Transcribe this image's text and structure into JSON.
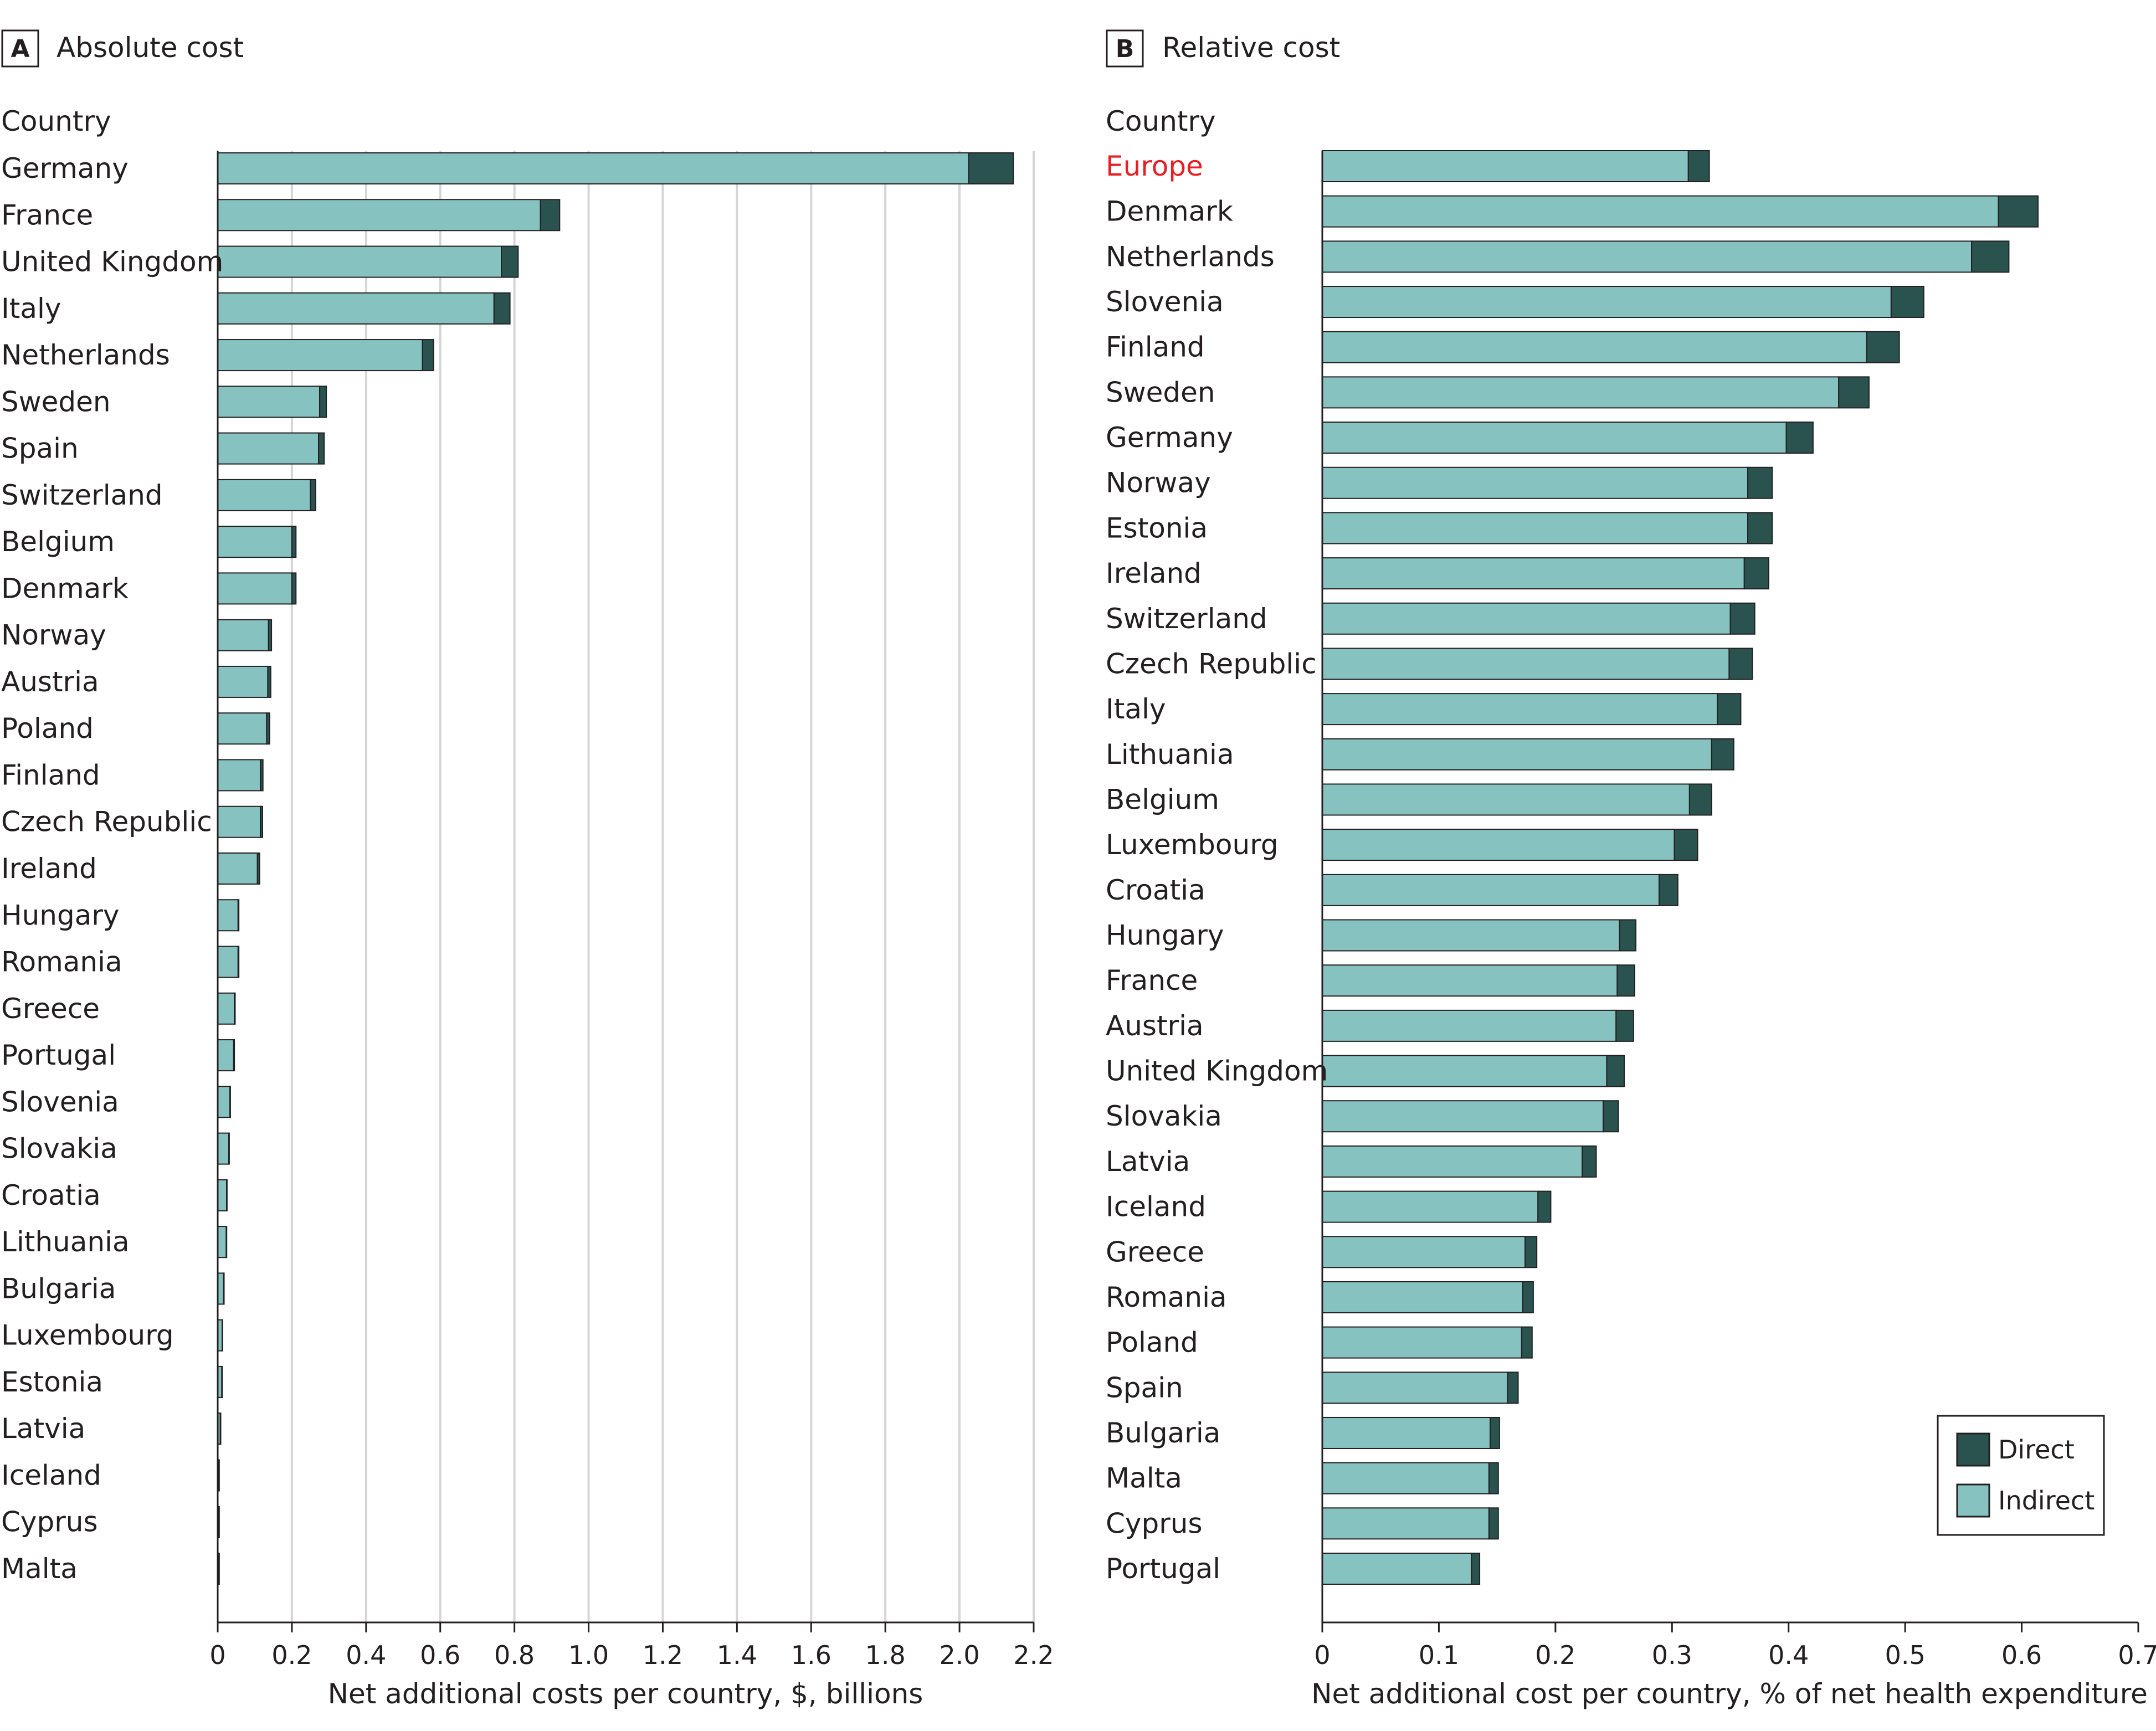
{
  "colors": {
    "direct": "#2a5350",
    "indirect": "#86c2c0",
    "grid": "#d5d5d5",
    "axis": "#231f20",
    "highlight": "#e41f25"
  },
  "legend": {
    "direct_label": "Direct",
    "indirect_label": "Indirect"
  },
  "chart_data": [
    {
      "type": "bar",
      "orientation": "horizontal",
      "stacked": true,
      "panel_letter": "A",
      "title": "Absolute cost",
      "category_header": "Country",
      "xlabel": "Net additional costs per country, $, billions",
      "xlim": [
        0,
        2.2
      ],
      "xticks": [
        0,
        0.2,
        0.4,
        0.6,
        0.8,
        1.0,
        1.2,
        1.4,
        1.6,
        1.8,
        2.0,
        2.2
      ],
      "xtick_labels": [
        "0",
        "0.2",
        "0.4",
        "0.6",
        "0.8",
        "1.0",
        "1.2",
        "1.4",
        "1.6",
        "1.8",
        "2.0",
        "2.2"
      ],
      "grid": true,
      "categories": [
        "Germany",
        "France",
        "United Kingdom",
        "Italy",
        "Netherlands",
        "Sweden",
        "Spain",
        "Switzerland",
        "Belgium",
        "Denmark",
        "Norway",
        "Austria",
        "Poland",
        "Finland",
        "Czech Republic",
        "Ireland",
        "Hungary",
        "Romania",
        "Greece",
        "Portugal",
        "Slovenia",
        "Slovakia",
        "Croatia",
        "Lithuania",
        "Bulgaria",
        "Luxembourg",
        "Estonia",
        "Latvia",
        "Iceland",
        "Cyprus",
        "Malta"
      ],
      "series": [
        {
          "name": "Indirect",
          "values": [
            2.025,
            0.87,
            0.765,
            0.745,
            0.552,
            0.275,
            0.272,
            0.25,
            0.2,
            0.2,
            0.137,
            0.135,
            0.132,
            0.115,
            0.115,
            0.107,
            0.055,
            0.055,
            0.045,
            0.043,
            0.033,
            0.03,
            0.024,
            0.023,
            0.016,
            0.012,
            0.011,
            0.007,
            0.003,
            0.003,
            0.003
          ]
        },
        {
          "name": "Direct",
          "values": [
            0.12,
            0.052,
            0.045,
            0.043,
            0.03,
            0.018,
            0.015,
            0.014,
            0.011,
            0.011,
            0.008,
            0.008,
            0.008,
            0.007,
            0.006,
            0.006,
            0.002,
            0.002,
            0.002,
            0.002,
            0.001,
            0.001,
            0.001,
            0.001,
            0.001,
            0.001,
            0.001,
            0.001,
            0.001,
            0.001,
            0.001
          ]
        }
      ]
    },
    {
      "type": "bar",
      "orientation": "horizontal",
      "stacked": true,
      "panel_letter": "B",
      "title": "Relative cost",
      "category_header": "Country",
      "xlabel": "Net additional cost per country, % of net health expenditure",
      "xlim": [
        0,
        0.7
      ],
      "xticks": [
        0,
        0.1,
        0.2,
        0.3,
        0.4,
        0.5,
        0.6,
        0.7
      ],
      "xtick_labels": [
        "0",
        "0.1",
        "0.2",
        "0.3",
        "0.4",
        "0.5",
        "0.6",
        "0.7"
      ],
      "grid": false,
      "highlighted_category": "Europe",
      "legend_position": "bottom-right",
      "categories": [
        "Europe",
        "Denmark",
        "Netherlands",
        "Slovenia",
        "Finland",
        "Sweden",
        "Germany",
        "Norway",
        "Estonia",
        "Ireland",
        "Switzerland",
        "Czech Republic",
        "Italy",
        "Lithuania",
        "Belgium",
        "Luxembourg",
        "Croatia",
        "Hungary",
        "France",
        "Austria",
        "United Kingdom",
        "Slovakia",
        "Latvia",
        "Iceland",
        "Greece",
        "Romania",
        "Poland",
        "Spain",
        "Bulgaria",
        "Malta",
        "Cyprus",
        "Portugal"
      ],
      "series": [
        {
          "name": "Indirect",
          "values": [
            0.314,
            0.58,
            0.557,
            0.488,
            0.467,
            0.443,
            0.398,
            0.365,
            0.365,
            0.362,
            0.35,
            0.349,
            0.339,
            0.334,
            0.315,
            0.302,
            0.289,
            0.255,
            0.253,
            0.252,
            0.244,
            0.241,
            0.223,
            0.185,
            0.174,
            0.172,
            0.171,
            0.159,
            0.144,
            0.143,
            0.143,
            0.128
          ]
        },
        {
          "name": "Direct",
          "values": [
            0.018,
            0.034,
            0.032,
            0.028,
            0.028,
            0.026,
            0.023,
            0.021,
            0.021,
            0.021,
            0.021,
            0.02,
            0.02,
            0.019,
            0.019,
            0.02,
            0.016,
            0.014,
            0.015,
            0.015,
            0.015,
            0.013,
            0.012,
            0.011,
            0.01,
            0.009,
            0.009,
            0.009,
            0.008,
            0.008,
            0.008,
            0.007
          ]
        }
      ]
    }
  ]
}
